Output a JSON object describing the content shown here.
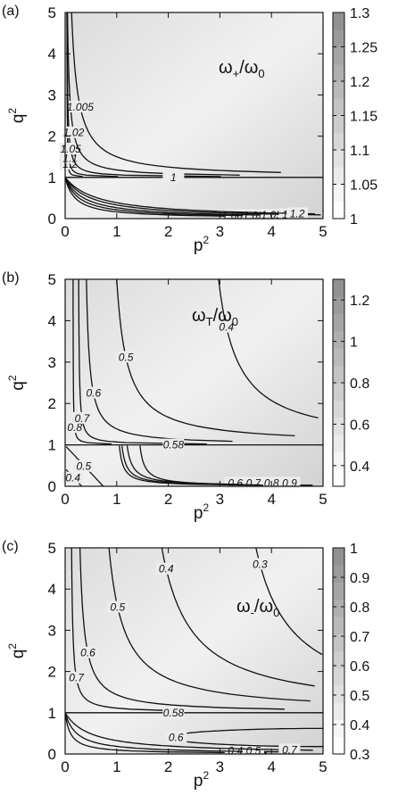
{
  "chart_data": [
    {
      "type": "heatmap",
      "panel_label": "(a)",
      "title_main": "ω",
      "title_sub": "+",
      "title_tail": "/ω",
      "title_den_sub": "0",
      "xlabel": "p",
      "xlabel_sup": "2",
      "ylabel": "q",
      "ylabel_sup": "2",
      "xlim": [
        0,
        5
      ],
      "ylim": [
        0,
        5
      ],
      "x_ticks": [
        0,
        1,
        2,
        3,
        4,
        5
      ],
      "y_ticks": [
        0,
        1,
        2,
        3,
        4,
        5
      ],
      "colorbar": {
        "range": [
          1,
          1.3
        ],
        "ticks": [
          1,
          1.05,
          1.1,
          1.15,
          1.2,
          1.25,
          1.3
        ],
        "tick_labels": [
          "1",
          "1.05",
          "1.1",
          "1.15",
          "1.2",
          "1.25",
          "1.3"
        ]
      },
      "contours": [
        {
          "level": "1.2",
          "region": "upper",
          "x_inf": 0.04,
          "a": 0.006
        },
        {
          "level": "1.1",
          "region": "upper",
          "x_inf": 0.03,
          "a": 0.02
        },
        {
          "level": "1.05",
          "region": "upper",
          "x_inf": 0.02,
          "a": 0.06
        },
        {
          "level": "1.02",
          "region": "upper",
          "x_inf": 0.0,
          "a": 0.18
        },
        {
          "level": "1.005",
          "region": "upper",
          "x_inf": 0.0,
          "a": 0.5
        },
        {
          "level": "1",
          "region": "line",
          "y": 1.0
        },
        {
          "level": "1.005",
          "region": "lower",
          "x_inf": 0.0,
          "a": 0.65
        },
        {
          "level": "1.02",
          "region": "lower",
          "x_inf": 0.0,
          "a": 0.9
        },
        {
          "level": "1.05",
          "region": "lower",
          "x_inf": 0.0,
          "a": 1.2
        },
        {
          "level": "1.1",
          "region": "lower",
          "x_inf": 0.0,
          "a": 1.65
        },
        {
          "level": "1.2",
          "region": "lower",
          "x_inf": 0.0,
          "a": 2.1
        }
      ]
    },
    {
      "type": "heatmap",
      "panel_label": "(b)",
      "title_main": "ω",
      "title_sub": "T",
      "title_tail": "/ω",
      "title_den_sub": "0",
      "xlabel": "p",
      "xlabel_sup": "2",
      "ylabel": "q",
      "ylabel_sup": "2",
      "xlim": [
        0,
        5
      ],
      "ylim": [
        0,
        5
      ],
      "x_ticks": [
        0,
        1,
        2,
        3,
        4,
        5
      ],
      "y_ticks": [
        0,
        1,
        2,
        3,
        4,
        5
      ],
      "colorbar": {
        "range": [
          0.3,
          1.3
        ],
        "ticks": [
          0.4,
          0.6,
          0.8,
          1,
          1.2
        ],
        "tick_labels": [
          "0.4",
          "0.6",
          "0.8",
          "1",
          "1.2"
        ]
      },
      "contours": [
        {
          "level": "0.8",
          "region": "upper",
          "x_inf": 0.15,
          "a": 0.015
        },
        {
          "level": "0.7",
          "region": "upper",
          "x_inf": 0.25,
          "a": 0.05
        },
        {
          "level": "0.6",
          "region": "upper",
          "x_inf": 0.35,
          "a": 0.25
        },
        {
          "level": "0.5",
          "region": "upper",
          "x_inf": 0.8,
          "a": 0.8
        },
        {
          "level": "0.4",
          "region": "upper",
          "x_inf": 2.6,
          "a": 1.5
        },
        {
          "level": "0.58",
          "region": "line",
          "y": 1.0
        },
        {
          "level": "0.6",
          "region": "lower",
          "x_inf": 1.45,
          "a": 0.3
        },
        {
          "level": "0.7",
          "region": "lower",
          "x_inf": 1.2,
          "a": 0.35
        },
        {
          "level": "0.8",
          "region": "lower",
          "x_inf": 1.1,
          "a": 0.3
        },
        {
          "level": "0.9",
          "region": "lower",
          "x_inf": 1.05,
          "a": 0.25
        },
        {
          "level": "0.5",
          "region": "corner",
          "b": 0.12
        },
        {
          "level": "0.4",
          "region": "corner",
          "b": 0.05
        }
      ]
    },
    {
      "type": "heatmap",
      "panel_label": "(c)",
      "title_main": "ω",
      "title_sub": "-",
      "title_tail": "/ω",
      "title_den_sub": "0",
      "xlabel": "p",
      "xlabel_sup": "2",
      "ylabel": "q",
      "ylabel_sup": "2",
      "xlim": [
        0,
        5
      ],
      "ylim": [
        0,
        5
      ],
      "x_ticks": [
        0,
        1,
        2,
        3,
        4,
        5
      ],
      "y_ticks": [
        0,
        1,
        2,
        3,
        4,
        5
      ],
      "colorbar": {
        "range": [
          0.3,
          1
        ],
        "ticks": [
          0.3,
          0.4,
          0.5,
          0.6,
          0.7,
          0.8,
          0.9,
          1
        ],
        "tick_labels": [
          "0.3",
          "0.4",
          "0.5",
          "0.6",
          "0.7",
          "0.8",
          "0.9",
          "1"
        ]
      },
      "contours": [
        {
          "level": "0.7",
          "region": "upper",
          "x_inf": 0.1,
          "a": 0.1
        },
        {
          "level": "0.6",
          "region": "upper",
          "x_inf": 0.2,
          "a": 0.35
        },
        {
          "level": "0.5",
          "region": "upper",
          "x_inf": 0.55,
          "a": 1.2
        },
        {
          "level": "0.4",
          "region": "upper",
          "x_inf": 1.3,
          "a": 2.3
        },
        {
          "level": "0.3",
          "region": "upper",
          "x_inf": 3.0,
          "a": 2.8
        },
        {
          "level": "0.58",
          "region": "line",
          "y": 1.0
        },
        {
          "level": "0.4",
          "region": "lower",
          "x_inf": 0.0,
          "a": 0.35
        },
        {
          "level": "0.5",
          "region": "lower",
          "x_inf": 0.0,
          "a": 0.75
        },
        {
          "level": "0.6",
          "region": "lobe",
          "x0": 2.0,
          "y0": 0.4,
          "w": 0.22
        },
        {
          "level": "0.7",
          "region": "lower",
          "x_inf": 0.0,
          "a": 1.6
        }
      ]
    }
  ]
}
